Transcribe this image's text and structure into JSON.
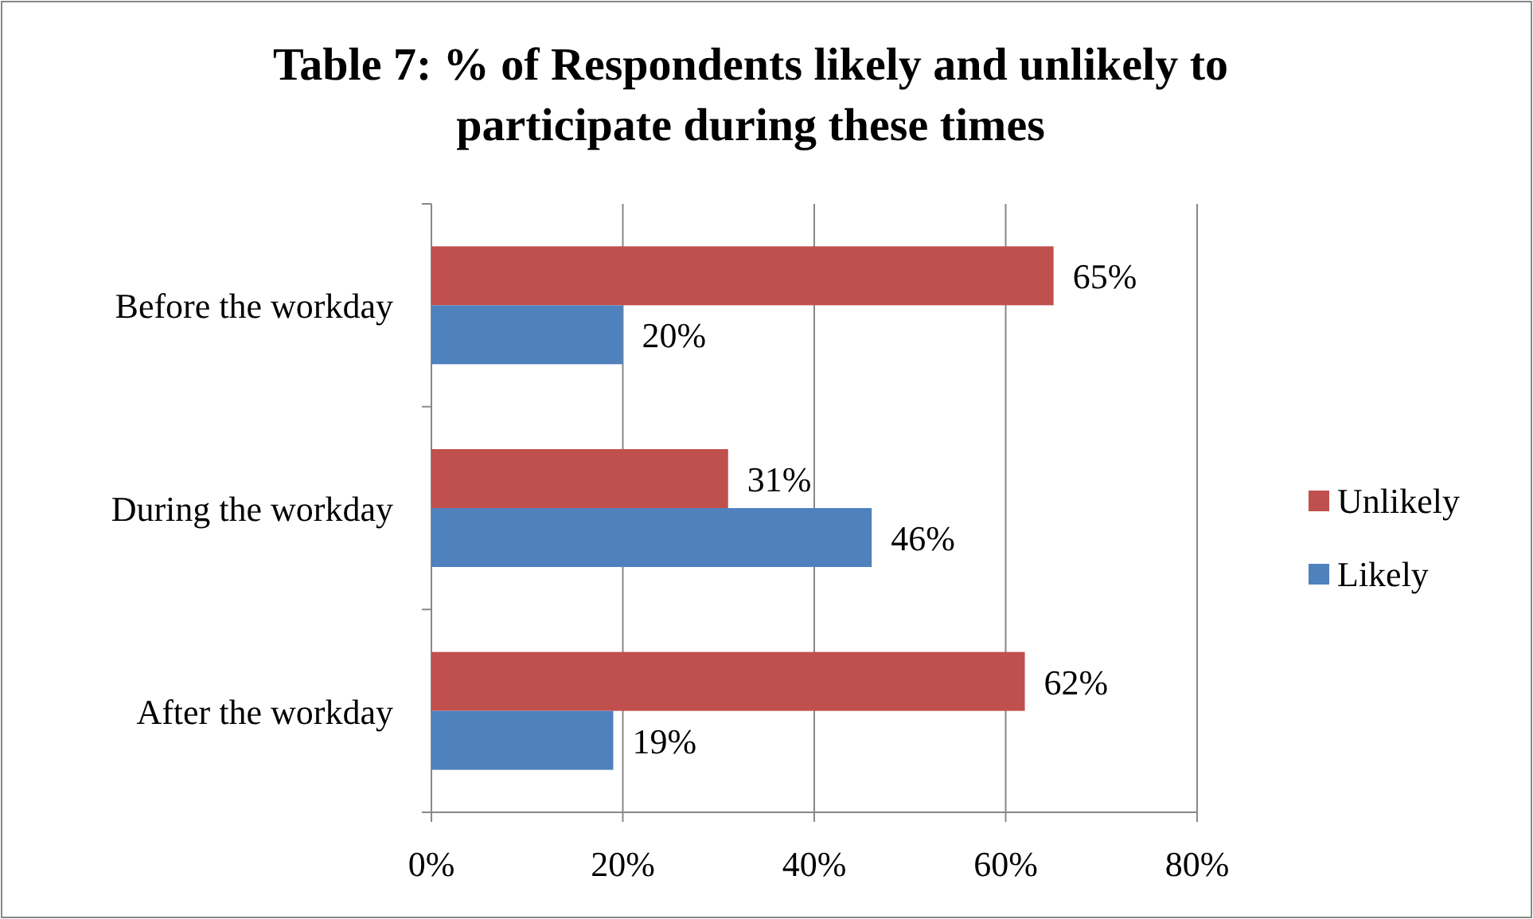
{
  "chart_data": {
    "type": "bar",
    "orientation": "horizontal",
    "title": "Table 7: % of Respondents likely and unlikely to participate during these times",
    "categories": [
      "Before the workday",
      "During the workday",
      "After the workday"
    ],
    "series": [
      {
        "name": "Unlikely",
        "color": "#c0504d",
        "values": [
          65,
          31,
          62
        ],
        "value_labels": [
          "65%",
          "31%",
          "62%"
        ]
      },
      {
        "name": "Likely",
        "color": "#4f81bd",
        "values": [
          20,
          46,
          19
        ],
        "value_labels": [
          "20%",
          "46%",
          "19%"
        ]
      }
    ],
    "xlim": [
      0,
      80
    ],
    "xticks": [
      {
        "value": 0,
        "label": "0%"
      },
      {
        "value": 20,
        "label": "20%"
      },
      {
        "value": 40,
        "label": "40%"
      },
      {
        "value": 60,
        "label": "60%"
      },
      {
        "value": 80,
        "label": "80%"
      }
    ],
    "grid": "x",
    "legend": "right"
  }
}
